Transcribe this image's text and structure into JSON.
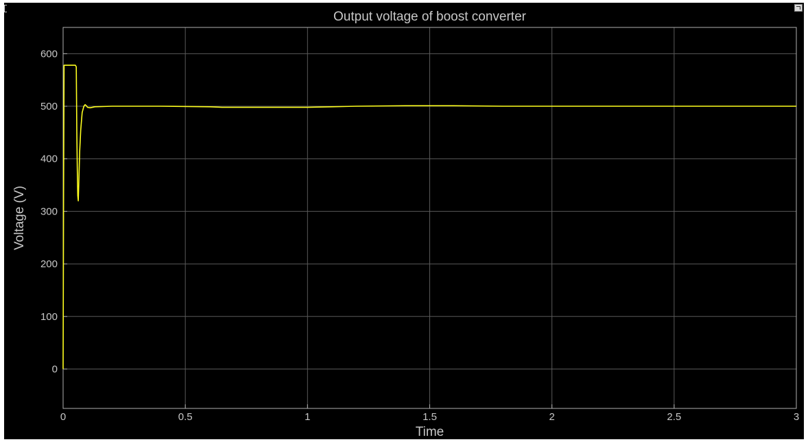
{
  "icons": {
    "corner": "restore-window-icon",
    "left": "panel-marker-icon"
  },
  "colors": {
    "background": "#000000",
    "axes": "#b0b0b0",
    "grid": "#5a5a5a",
    "trace": "#ffff1e",
    "text": "#c8c8c8"
  },
  "chart_data": {
    "type": "line",
    "title": "Output voltage of boost converter",
    "xlabel": "Time",
    "ylabel": "Voltage (V)",
    "xlim": [
      0,
      3
    ],
    "ylim": [
      -75,
      650
    ],
    "xticks": [
      0,
      0.5,
      1,
      1.5,
      2,
      2.5,
      3
    ],
    "xtick_labels": [
      "0",
      "0.5",
      "1",
      "1.5",
      "2",
      "2.5",
      "3"
    ],
    "yticks": [
      0,
      100,
      200,
      300,
      400,
      500,
      600
    ],
    "ytick_labels": [
      "0",
      "100",
      "200",
      "300",
      "400",
      "500",
      "600"
    ],
    "grid": true,
    "series": [
      {
        "values": [
          [
            0,
            0
          ],
          [
            0.002,
            340
          ],
          [
            0.004,
            578
          ],
          [
            0.01,
            578
          ],
          [
            0.02,
            578
          ],
          [
            0.03,
            578
          ],
          [
            0.04,
            578
          ],
          [
            0.05,
            578
          ],
          [
            0.054,
            575
          ],
          [
            0.056,
            450
          ],
          [
            0.058,
            380
          ],
          [
            0.06,
            330
          ],
          [
            0.062,
            320
          ],
          [
            0.064,
            350
          ],
          [
            0.068,
            415
          ],
          [
            0.072,
            455
          ],
          [
            0.078,
            488
          ],
          [
            0.085,
            500
          ],
          [
            0.09,
            503
          ],
          [
            0.095,
            501
          ],
          [
            0.1,
            498
          ],
          [
            0.11,
            497
          ],
          [
            0.13,
            499
          ],
          [
            0.2,
            500
          ],
          [
            0.4,
            500
          ],
          [
            0.6,
            499
          ],
          [
            0.65,
            498
          ],
          [
            0.8,
            498
          ],
          [
            1.0,
            498
          ],
          [
            1.1,
            499
          ],
          [
            1.2,
            500
          ],
          [
            1.4,
            501
          ],
          [
            1.6,
            501
          ],
          [
            1.8,
            500
          ],
          [
            2.0,
            500
          ],
          [
            2.2,
            500
          ],
          [
            2.4,
            500
          ],
          [
            2.6,
            500
          ],
          [
            2.8,
            500
          ],
          [
            3.0,
            500
          ]
        ]
      }
    ]
  }
}
